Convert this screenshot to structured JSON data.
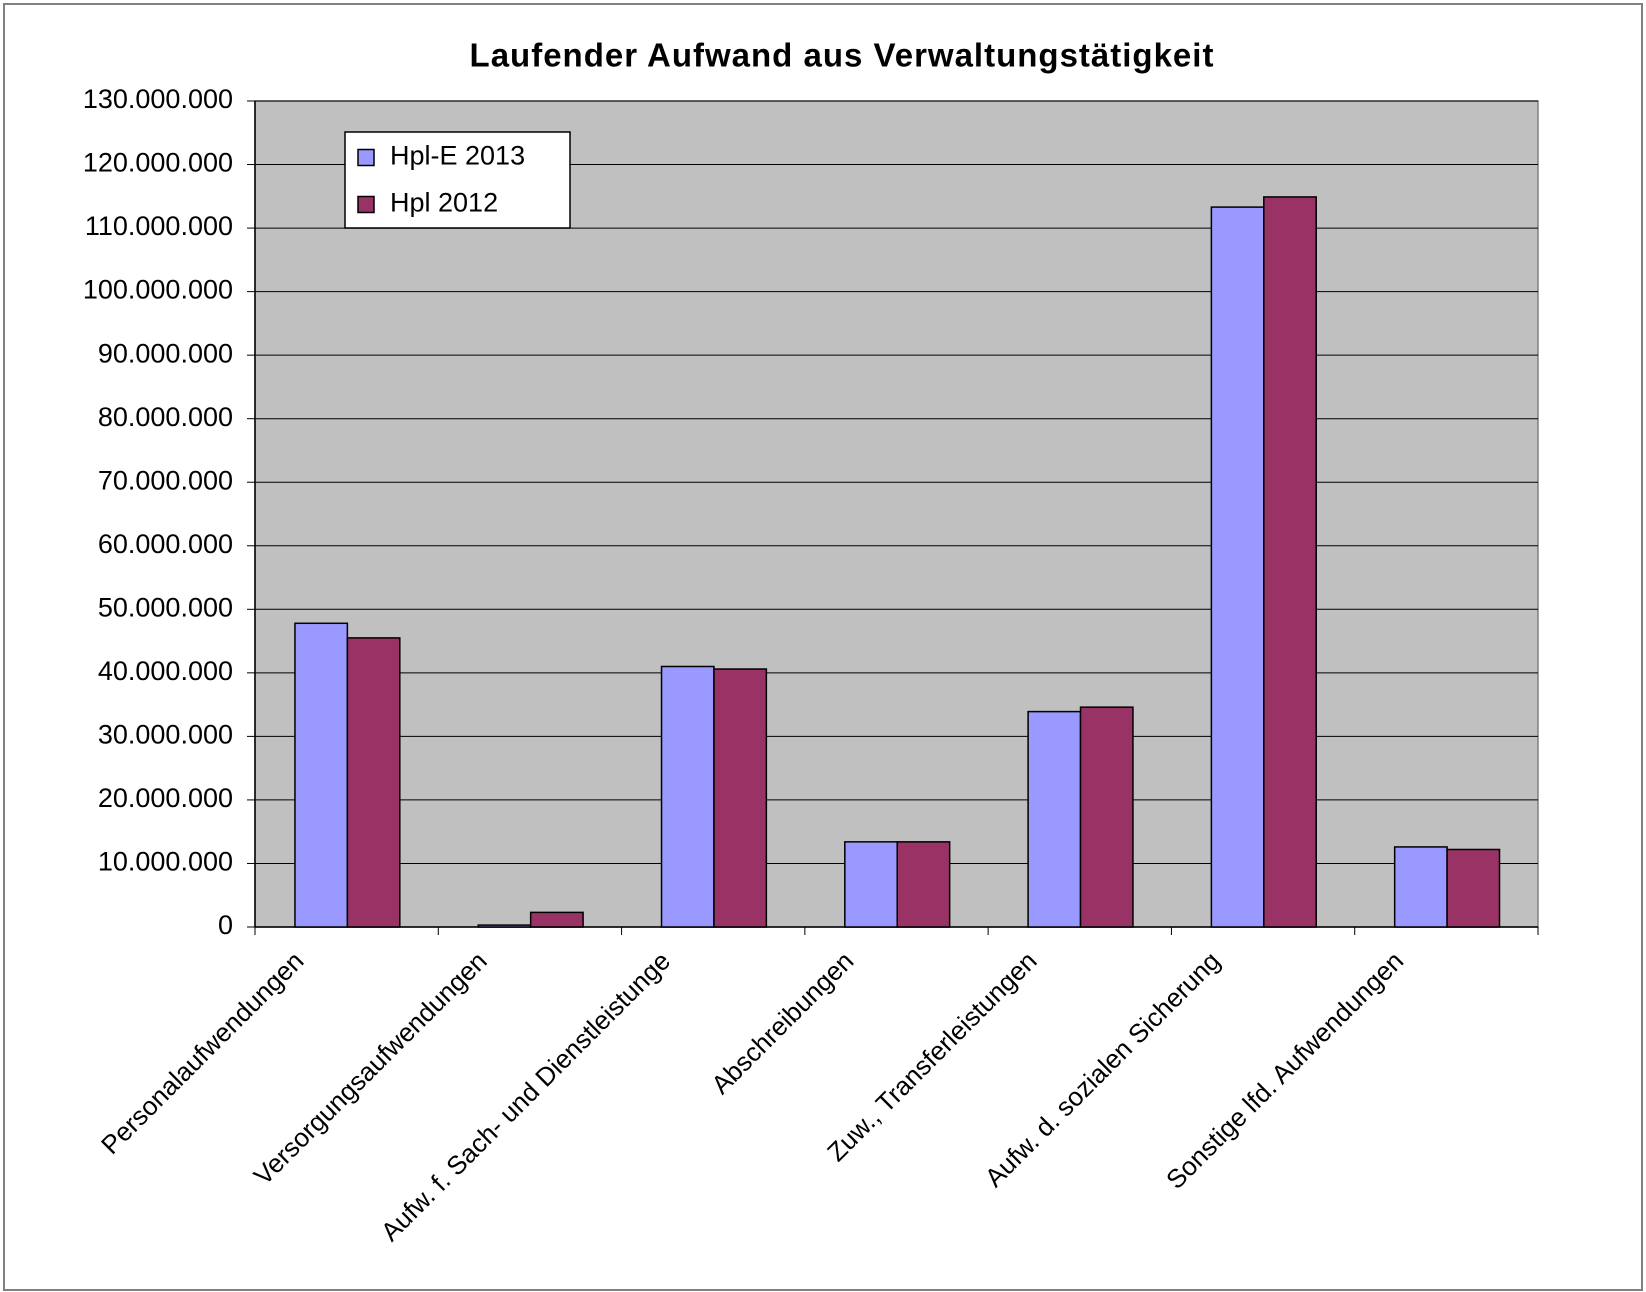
{
  "chart_data": {
    "type": "bar",
    "title": "Laufender Aufwand aus Verwaltungstätigkeit",
    "categories": [
      "Personalaufwendungen",
      "Versorgungsaufwendungen",
      "Aufw. f. Sach- und Dienstleistunge",
      "Abschreibungen",
      "Zuw., Transferleistungen",
      "Aufw. d. sozialen Sicherung",
      "Sonstige lfd. Aufwendungen"
    ],
    "series": [
      {
        "name": "Hpl-E 2013",
        "color": "#9999ff",
        "values": [
          47800000,
          300000,
          41000000,
          13400000,
          33900000,
          113300000,
          12600000
        ]
      },
      {
        "name": "Hpl 2012",
        "color": "#993366",
        "values": [
          45500000,
          2300000,
          40600000,
          13400000,
          34600000,
          114900000,
          12200000
        ]
      }
    ],
    "ylim": [
      0,
      130000000
    ],
    "yticks": [
      0,
      {
        "value": 10000000,
        "label": "10.000.000"
      },
      {
        "value": 20000000,
        "label": "20.000.000"
      },
      {
        "value": 30000000,
        "label": "30.000.000"
      },
      {
        "value": 40000000,
        "label": "40.000.000"
      },
      {
        "value": 50000000,
        "label": "50.000.000"
      },
      {
        "value": 60000000,
        "label": "60.000.000"
      },
      {
        "value": 70000000,
        "label": "70.000.000"
      },
      {
        "value": 80000000,
        "label": "80.000.000"
      },
      {
        "value": 90000000,
        "label": "90.000.000"
      },
      {
        "value": 100000000,
        "label": "100.000.000"
      },
      {
        "value": 110000000,
        "label": "110.000.000"
      },
      {
        "value": 120000000,
        "label": "120.000.000"
      },
      {
        "value": 130000000,
        "label": "130.000.000"
      }
    ],
    "grid": true,
    "legend": "upper-left"
  }
}
